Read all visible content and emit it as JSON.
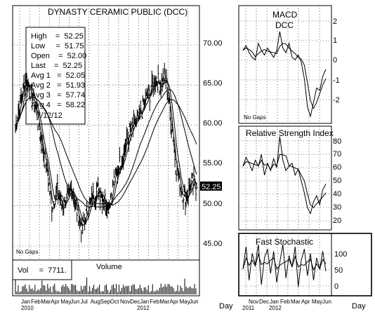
{
  "main_panel": {
    "title": "DYNASTY CERAMIC PUBLIC (DCC)",
    "info": {
      "high": "High    =  52.25",
      "low": "Low     =  51.75",
      "open": "Open    =  52.00",
      "last": "Last    =  52.25",
      "avg1": "Avg 1   =  52.05",
      "avg2": "Avg 2   =  51.93",
      "avg3": "Avg 3   =  57.74",
      "avg4": "Avg 4   =  58.22",
      "date": "7/12/12"
    },
    "no_gaps": "No Gaps",
    "last_price_tag": "52.25",
    "y_ticks": [
      "70.00",
      "65.00",
      "60.00",
      "55.00",
      "50.00",
      "45.00"
    ]
  },
  "volume_panel": {
    "title": "Volume",
    "readout": "Vol     =  7711."
  },
  "macd_panel": {
    "title": "MACD",
    "subtitle": "DCC",
    "no_gaps": "No Gaps",
    "y_ticks": [
      "2",
      "1",
      "0",
      "-1",
      "-2"
    ]
  },
  "rsi_panel": {
    "title": "Relative Strength Index",
    "y_ticks": [
      "80",
      "70",
      "60",
      "50",
      "40",
      "30",
      "20"
    ]
  },
  "stoch_panel": {
    "title": "Fast Stochastic",
    "y_ticks": [
      "100",
      "50",
      "0"
    ]
  },
  "main_x_axis": {
    "months": [
      "Jan",
      "Feb",
      "Mar",
      "Apr",
      "May",
      "Jun",
      "Jul",
      "Aug",
      "Sep",
      "Oct",
      "Nov",
      "Dec",
      "Jan",
      "Feb",
      "Mar",
      "Apr",
      "May",
      "Jun"
    ],
    "years": [
      "2010",
      "2012"
    ],
    "unit": "Day"
  },
  "right_x_axis": {
    "months": [
      "Nov",
      "Dec",
      "Jan",
      "Feb",
      "Mar",
      "Apr",
      "May",
      "Jun"
    ],
    "years": [
      "2011",
      "2012"
    ],
    "unit": "Day"
  },
  "chart_data": {
    "type": "line",
    "title": "DYNASTY CERAMIC PUBLIC (DCC)",
    "price_ohlc_last": {
      "high": 52.25,
      "low": 51.75,
      "open": 52.0,
      "last": 52.25
    },
    "moving_averages_last": [
      52.05,
      51.93,
      57.74,
      58.22
    ],
    "ylim": [
      44.5,
      73
    ],
    "price_close_approx": [
      [
        "Jan 2011",
        60
      ],
      [
        "Jan 2011",
        63
      ],
      [
        "Feb 2011",
        66
      ],
      [
        "Feb 2011",
        64
      ],
      [
        "Mar 2011",
        62
      ],
      [
        "Mar 2011",
        58
      ],
      [
        "Apr 2011",
        55
      ],
      [
        "Apr 2011",
        50
      ],
      [
        "May 2011",
        52
      ],
      [
        "May 2011",
        50
      ],
      [
        "Jun 2011",
        51
      ],
      [
        "Jun 2011",
        52
      ],
      [
        "Jul 2011",
        49
      ],
      [
        "Jul 2011",
        47
      ],
      [
        "Aug 2011",
        50
      ],
      [
        "Aug 2011",
        51
      ],
      [
        "Sep 2011",
        52
      ],
      [
        "Sep 2011",
        51
      ],
      [
        "Oct 2011",
        50
      ],
      [
        "Oct 2011",
        53
      ],
      [
        "Nov 2011",
        55
      ],
      [
        "Nov 2011",
        57
      ],
      [
        "Dec 2011",
        59
      ],
      [
        "Dec 2011",
        60
      ],
      [
        "Jan 2012",
        61
      ],
      [
        "Jan 2012",
        63
      ],
      [
        "Feb 2012",
        64
      ],
      [
        "Feb 2012",
        66
      ],
      [
        "Mar 2012",
        65
      ],
      [
        "Mar 2012",
        66
      ],
      [
        "Apr 2012",
        61
      ],
      [
        "Apr 2012",
        55
      ],
      [
        "May 2012",
        52
      ],
      [
        "May 2012",
        51
      ],
      [
        "Jun 2012",
        53
      ],
      [
        "Jun 2012",
        52.25
      ]
    ],
    "volume_last": 7711,
    "macd_ylim": [
      -2.5,
      2.5
    ],
    "macd_approx": [
      0.6,
      0.8,
      0.5,
      0.3,
      0.2,
      0.9,
      0.6,
      0.4,
      0.7,
      0.5,
      0.3,
      0.6,
      1.4,
      0.7,
      0.5,
      0.9,
      0.3,
      0.2,
      0.4,
      0.1,
      -0.6,
      -1.8,
      -2.2,
      -1.6,
      -1.0,
      -1.1,
      -0.5,
      -0.2
    ],
    "rsi_ylim": [
      15,
      85
    ],
    "rsi_approx": [
      58,
      64,
      60,
      55,
      62,
      58,
      66,
      52,
      60,
      55,
      63,
      57,
      78,
      62,
      55,
      58,
      60,
      52,
      56,
      48,
      40,
      30,
      26,
      34,
      38,
      32,
      42,
      46
    ],
    "stoch_ylim": [
      -15,
      125
    ],
    "stoch_approx": [
      45,
      95,
      20,
      80,
      55,
      100,
      10,
      70,
      90,
      35,
      85,
      15,
      60,
      100,
      25,
      75,
      50,
      95,
      5,
      65,
      90,
      30,
      80,
      20,
      70,
      45,
      85,
      40
    ]
  }
}
